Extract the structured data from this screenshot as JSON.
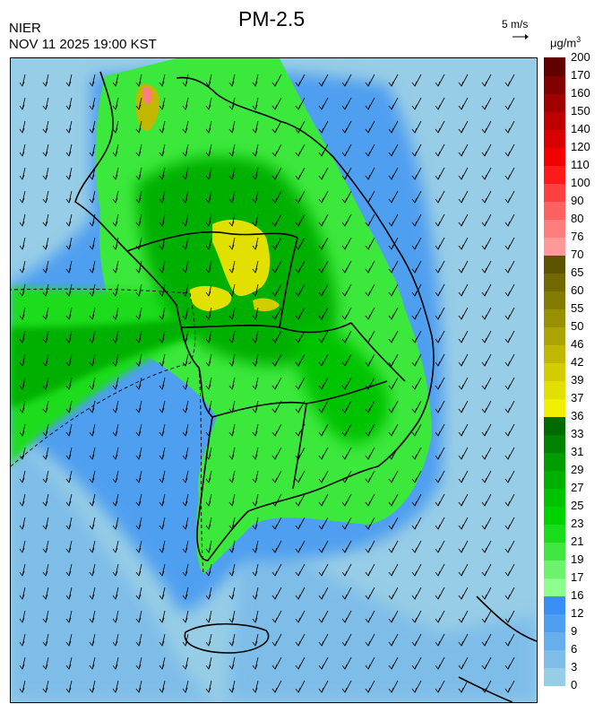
{
  "header": {
    "agency": "NIER",
    "timestamp": "NOV 11 2025 19:00 KST",
    "title": "PM-2.5"
  },
  "wind_scale": {
    "label": "5 m/s"
  },
  "legend": {
    "unit_base": "μg/m",
    "unit_exp": "3",
    "levels": [
      "0",
      "3",
      "6",
      "9",
      "12",
      "16",
      "17",
      "19",
      "21",
      "23",
      "25",
      "27",
      "29",
      "31",
      "33",
      "36",
      "37",
      "39",
      "42",
      "46",
      "50",
      "55",
      "60",
      "65",
      "70",
      "76",
      "80",
      "90",
      "100",
      "110",
      "120",
      "140",
      "150",
      "160",
      "170",
      "200"
    ],
    "colors": [
      "#97cde6",
      "#7fbde9",
      "#67aeec",
      "#4f9ff0",
      "#3a8ff2",
      "#8cff8c",
      "#6df26d",
      "#41e641",
      "#1bdc1b",
      "#00d200",
      "#00c300",
      "#00b000",
      "#009c00",
      "#008400",
      "#006b00",
      "#f0f000",
      "#e2e000",
      "#d2cc00",
      "#c0b800",
      "#aca400",
      "#979000",
      "#847c00",
      "#716800",
      "#5e5400",
      "#ff9999",
      "#ff7d7d",
      "#ff6060",
      "#ff4040",
      "#ff1a1a",
      "#f20000",
      "#d80000",
      "#be0000",
      "#a00000",
      "#820000",
      "#620000"
    ]
  },
  "wind": {
    "direction": "north-northeasterly"
  }
}
